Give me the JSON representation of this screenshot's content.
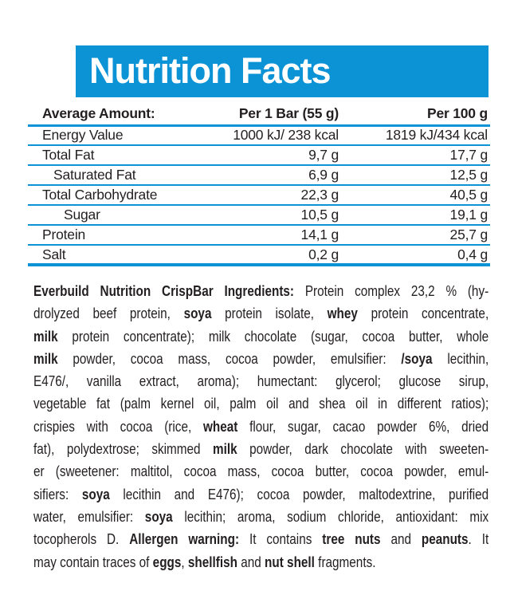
{
  "header": {
    "title": "Nutrition Facts"
  },
  "colors": {
    "accent": "#0c93d6",
    "text": "#231f20",
    "title_text": "#ffffff"
  },
  "table": {
    "columns": [
      "Average Amount:",
      "Per 1 Bar (55 g)",
      "Per 100 g"
    ],
    "rows": [
      {
        "label": "Energy Value",
        "indent": 0,
        "per_bar": "1000 kJ/ 238 kcal",
        "per_100g": "1819 kJ/434 kcal"
      },
      {
        "label": "Total Fat",
        "indent": 0,
        "per_bar": "9,7 g",
        "per_100g": "17,7 g"
      },
      {
        "label": "Saturated Fat",
        "indent": 1,
        "per_bar": "6,9 g",
        "per_100g": "12,5 g"
      },
      {
        "label": "Total Carbohydrate",
        "indent": 0,
        "per_bar": "22,3 g",
        "per_100g": "40,5 g"
      },
      {
        "label": "Sugar",
        "indent": 2,
        "per_bar": "10,5 g",
        "per_100g": "19,1 g"
      },
      {
        "label": "Protein",
        "indent": 0,
        "per_bar": "14,1 g",
        "per_100g": "25,7 g"
      },
      {
        "label": "Salt",
        "indent": 0,
        "per_bar": "0,2 g",
        "per_100g": "0,4 g"
      }
    ]
  },
  "ingredients": {
    "lines": [
      [
        {
          "t": "Everbuild Nutrition CrispBar Ingredients:",
          "b": true
        },
        {
          "t": " Protein complex 23,2 % (hy-"
        }
      ],
      [
        {
          "t": "drolyzed beef protein, "
        },
        {
          "t": "soya",
          "b": true
        },
        {
          "t": " protein isolate, "
        },
        {
          "t": "whey",
          "b": true
        },
        {
          "t": " protein concentrate,"
        }
      ],
      [
        {
          "t": "milk",
          "b": true
        },
        {
          "t": " protein concentrate); milk chocolate (sugar, cocoa butter, whole"
        }
      ],
      [
        {
          "t": "milk",
          "b": true
        },
        {
          "t": " powder, cocoa mass, cocoa powder, emulsifier: "
        },
        {
          "t": "/soya",
          "b": true
        },
        {
          "t": " lecithin,"
        }
      ],
      [
        {
          "t": "E476/, vanilla extract, aroma); humectant: glycerol; glucose sirup,"
        }
      ],
      [
        {
          "t": "vegetable fat (palm kernel oil, palm oil and shea oil in different ratios);"
        }
      ],
      [
        {
          "t": "crispies with cocoa (rice, "
        },
        {
          "t": "wheat",
          "b": true
        },
        {
          "t": " flour, sugar, cacao powder 6%, dried"
        }
      ],
      [
        {
          "t": "fat), polydextrose; skimmed "
        },
        {
          "t": "milk",
          "b": true
        },
        {
          "t": " powder,  dark chocolate with sweeten-"
        }
      ],
      [
        {
          "t": "er (sweetener: maltitol, cocoa mass, cocoa butter, cocoa powder, emul-"
        }
      ],
      [
        {
          "t": "sifiers: "
        },
        {
          "t": "soya",
          "b": true
        },
        {
          "t": " lecithin and E476); cocoa powder, maltodextrine, purified"
        }
      ],
      [
        {
          "t": "water, emulsifier: "
        },
        {
          "t": "soya",
          "b": true
        },
        {
          "t": " lecithin; aroma, sodium chloride, antioxidant: mix"
        }
      ],
      [
        {
          "t": "tocopherols D.  "
        },
        {
          "t": "Allergen warning:",
          "b": true
        },
        {
          "t": " It contains "
        },
        {
          "t": "tree nuts",
          "b": true
        },
        {
          "t": " and "
        },
        {
          "t": "peanuts",
          "b": true
        },
        {
          "t": ". It"
        }
      ],
      [
        {
          "t": "may contain traces of "
        },
        {
          "t": "eggs",
          "b": true
        },
        {
          "t": ", "
        },
        {
          "t": "shellfish",
          "b": true
        },
        {
          "t": " and "
        },
        {
          "t": "nut shell",
          "b": true
        },
        {
          "t": " fragments."
        }
      ]
    ]
  }
}
